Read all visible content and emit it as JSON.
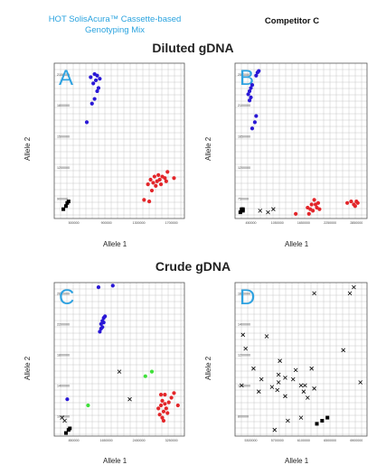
{
  "headers": {
    "left": "HOT SolisAcura™ Cassette-based Genotyping Mix",
    "right": "Competitor C"
  },
  "sections": {
    "diluted": "Diluted gDNA",
    "crude": "Crude gDNA"
  },
  "colors": {
    "blue": "#2a18d6",
    "red": "#e3262a",
    "black": "#000000",
    "green": "#3fe03a",
    "letter": "#2fa2e0",
    "grid": "#c8c8c8"
  },
  "chart_data": [
    {
      "id": "A",
      "type": "scatter",
      "panel_label": "A",
      "xlabel": "Allele 1",
      "ylabel": "Allele 2",
      "xlim": [
        0,
        1
      ],
      "ylim": [
        0,
        1
      ],
      "xticks": [
        "500000",
        "900000",
        "1300000",
        "1700000"
      ],
      "yticks": [
        "900000",
        "1200000",
        "1500000",
        "1800000",
        "2100000"
      ],
      "series": [
        {
          "marker": "dot",
          "color": "blue",
          "points": [
            [
              0.28,
              0.91
            ],
            [
              0.31,
              0.93
            ],
            [
              0.3,
              0.87
            ],
            [
              0.32,
              0.89
            ],
            [
              0.33,
              0.92
            ],
            [
              0.35,
              0.9
            ],
            [
              0.34,
              0.84
            ],
            [
              0.33,
              0.82
            ],
            [
              0.31,
              0.77
            ],
            [
              0.29,
              0.74
            ],
            [
              0.25,
              0.62
            ]
          ]
        },
        {
          "marker": "dot",
          "color": "red",
          "points": [
            [
              0.72,
              0.22
            ],
            [
              0.74,
              0.25
            ],
            [
              0.76,
              0.23
            ],
            [
              0.77,
              0.27
            ],
            [
              0.79,
              0.24
            ],
            [
              0.8,
              0.28
            ],
            [
              0.81,
              0.25
            ],
            [
              0.83,
              0.27
            ],
            [
              0.85,
              0.26
            ],
            [
              0.86,
              0.24
            ],
            [
              0.78,
              0.21
            ],
            [
              0.82,
              0.22
            ],
            [
              0.87,
              0.3
            ],
            [
              0.92,
              0.26
            ],
            [
              0.69,
              0.12
            ],
            [
              0.73,
              0.11
            ],
            [
              0.75,
              0.18
            ]
          ]
        },
        {
          "marker": "square",
          "color": "black",
          "points": [
            [
              0.07,
              0.06
            ],
            [
              0.09,
              0.08
            ],
            [
              0.1,
              0.1
            ],
            [
              0.11,
              0.11
            ]
          ]
        }
      ]
    },
    {
      "id": "B",
      "type": "scatter",
      "panel_label": "B",
      "xlabel": "Allele 1",
      "ylabel": "Allele 2",
      "xlim": [
        0,
        1
      ],
      "ylim": [
        0,
        1
      ],
      "xticks": [
        "450000",
        "1050000",
        "1650000",
        "2250000",
        "2850000"
      ],
      "yticks": [
        "750000",
        "1200000",
        "1650000",
        "2100000",
        "2550000"
      ],
      "series": [
        {
          "marker": "dot",
          "color": "blue",
          "points": [
            [
              0.1,
              0.8
            ],
            [
              0.12,
              0.84
            ],
            [
              0.11,
              0.82
            ],
            [
              0.13,
              0.86
            ],
            [
              0.12,
              0.78
            ],
            [
              0.11,
              0.76
            ],
            [
              0.17,
              0.94
            ],
            [
              0.18,
              0.95
            ],
            [
              0.16,
              0.92
            ],
            [
              0.15,
              0.62
            ],
            [
              0.16,
              0.66
            ],
            [
              0.13,
              0.58
            ]
          ]
        },
        {
          "marker": "dot",
          "color": "red",
          "points": [
            [
              0.57,
              0.06
            ],
            [
              0.59,
              0.05
            ],
            [
              0.61,
              0.09
            ],
            [
              0.62,
              0.07
            ],
            [
              0.63,
              0.1
            ],
            [
              0.64,
              0.06
            ],
            [
              0.58,
              0.09
            ],
            [
              0.6,
              0.12
            ],
            [
              0.46,
              0.03
            ],
            [
              0.55,
              0.07
            ],
            [
              0.56,
              0.03
            ],
            [
              0.85,
              0.1
            ],
            [
              0.88,
              0.11
            ],
            [
              0.91,
              0.08
            ],
            [
              0.92,
              0.11
            ],
            [
              0.9,
              0.09
            ],
            [
              0.93,
              0.1
            ]
          ]
        },
        {
          "marker": "square",
          "color": "black",
          "points": [
            [
              0.04,
              0.04
            ],
            [
              0.05,
              0.05
            ],
            [
              0.06,
              0.06
            ],
            [
              0.05,
              0.06
            ],
            [
              0.06,
              0.05
            ]
          ]
        },
        {
          "marker": "cross",
          "color": "black",
          "points": [
            [
              0.19,
              0.05
            ],
            [
              0.25,
              0.04
            ],
            [
              0.29,
              0.06
            ]
          ]
        }
      ]
    },
    {
      "id": "C",
      "type": "scatter",
      "panel_label": "C",
      "xlabel": "Allele 1",
      "ylabel": "Allele 2",
      "xlim": [
        0,
        1
      ],
      "ylim": [
        0,
        1
      ],
      "xticks": [
        "850000",
        "1650000",
        "2450000",
        "3250000"
      ],
      "yticks": [
        "1000000",
        "1400000",
        "1800000",
        "2200000",
        "2600000"
      ],
      "series": [
        {
          "marker": "dot",
          "color": "blue",
          "points": [
            [
              0.34,
              0.97
            ],
            [
              0.45,
              0.98
            ],
            [
              0.38,
              0.77
            ],
            [
              0.37,
              0.75
            ],
            [
              0.36,
              0.73
            ],
            [
              0.38,
              0.74
            ],
            [
              0.37,
              0.71
            ],
            [
              0.35,
              0.68
            ],
            [
              0.36,
              0.7
            ],
            [
              0.39,
              0.78
            ],
            [
              0.1,
              0.24
            ]
          ]
        },
        {
          "marker": "dot",
          "color": "red",
          "points": [
            [
              0.8,
              0.18
            ],
            [
              0.82,
              0.2
            ],
            [
              0.84,
              0.16
            ],
            [
              0.83,
              0.23
            ],
            [
              0.85,
              0.21
            ],
            [
              0.86,
              0.18
            ],
            [
              0.81,
              0.14
            ],
            [
              0.83,
              0.12
            ],
            [
              0.84,
              0.1
            ],
            [
              0.88,
              0.22
            ],
            [
              0.9,
              0.25
            ],
            [
              0.92,
              0.28
            ],
            [
              0.85,
              0.27
            ],
            [
              0.87,
              0.15
            ],
            [
              0.95,
              0.2
            ],
            [
              0.82,
              0.27
            ]
          ]
        },
        {
          "marker": "dot",
          "color": "green",
          "points": [
            [
              0.26,
              0.2
            ],
            [
              0.7,
              0.39
            ],
            [
              0.75,
              0.42
            ]
          ]
        },
        {
          "marker": "square",
          "color": "black",
          "points": [
            [
              0.09,
              0.02
            ],
            [
              0.11,
              0.04
            ],
            [
              0.12,
              0.05
            ]
          ]
        },
        {
          "marker": "cross",
          "color": "black",
          "points": [
            [
              0.06,
              0.12
            ],
            [
              0.08,
              0.1
            ],
            [
              0.5,
              0.42
            ],
            [
              0.58,
              0.24
            ]
          ]
        }
      ]
    },
    {
      "id": "D",
      "type": "scatter",
      "panel_label": "D",
      "xlabel": "Allele 1",
      "ylabel": "Allele 2",
      "xlim": [
        0,
        1
      ],
      "ylim": [
        0,
        1
      ],
      "xticks": [
        "5300000",
        "5700000",
        "6100000",
        "6500000",
        "6900000"
      ],
      "yticks": [
        "800000",
        "1000000",
        "1200000",
        "1400000",
        "1600000"
      ],
      "series": [
        {
          "marker": "square",
          "color": "black",
          "points": [
            [
              0.62,
              0.08
            ],
            [
              0.66,
              0.1
            ],
            [
              0.7,
              0.12
            ]
          ]
        },
        {
          "marker": "cross",
          "color": "black",
          "points": [
            [
              0.6,
              0.93
            ],
            [
              0.87,
              0.93
            ],
            [
              0.9,
              0.97
            ],
            [
              0.82,
              0.56
            ],
            [
              0.95,
              0.35
            ],
            [
              0.05,
              0.33
            ],
            [
              0.06,
              0.66
            ],
            [
              0.08,
              0.57
            ],
            [
              0.14,
              0.44
            ],
            [
              0.18,
              0.29
            ],
            [
              0.2,
              0.37
            ],
            [
              0.24,
              0.65
            ],
            [
              0.28,
              0.32
            ],
            [
              0.32,
              0.3
            ],
            [
              0.33,
              0.4
            ],
            [
              0.34,
              0.49
            ],
            [
              0.33,
              0.35
            ],
            [
              0.38,
              0.38
            ],
            [
              0.38,
              0.26
            ],
            [
              0.44,
              0.37
            ],
            [
              0.46,
              0.43
            ],
            [
              0.5,
              0.33
            ],
            [
              0.52,
              0.29
            ],
            [
              0.53,
              0.33
            ],
            [
              0.55,
              0.25
            ],
            [
              0.58,
              0.44
            ],
            [
              0.6,
              0.31
            ],
            [
              0.5,
              0.12
            ],
            [
              0.4,
              0.1
            ],
            [
              0.3,
              0.04
            ]
          ]
        }
      ]
    }
  ]
}
